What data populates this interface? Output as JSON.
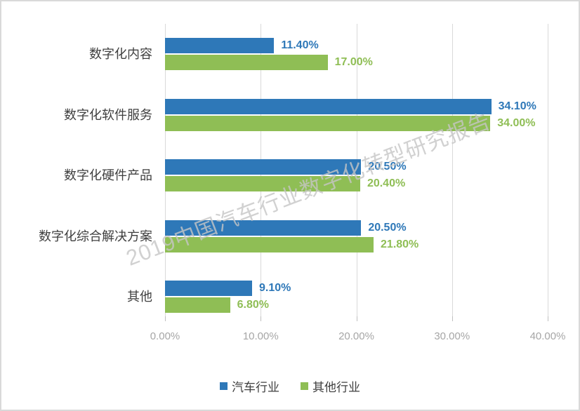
{
  "watermark": {
    "text": "2019中国汽车行业数字化转型研究报告"
  },
  "colors": {
    "auto_industry_bar": "#2e78b8",
    "other_industry_bar": "#8fbe55",
    "gridline": "#d9d9d9",
    "axis_label": "#a6a6a6",
    "category_label": "#3f3f3f",
    "panel_border": "#d9d9d9",
    "watermark": "#c6c6c6"
  },
  "chart_data": {
    "type": "bar",
    "orientation": "horizontal",
    "title": "",
    "xlabel": "",
    "ylabel": "",
    "grid": true,
    "legend_position": "bottom",
    "xlim": [
      0,
      40
    ],
    "categories": [
      "数字化内容",
      "数字化软件服务",
      "数字化硬件产品",
      "数字化综合解决方案",
      "其他"
    ],
    "series": [
      {
        "name": "汽车行业",
        "color": "#2e78b8",
        "values": [
          11.4,
          34.1,
          20.5,
          20.5,
          9.1
        ],
        "labels": [
          "11.40%",
          "34.10%",
          "20.50%",
          "20.50%",
          "9.10%"
        ]
      },
      {
        "name": "其他行业",
        "color": "#8fbe55",
        "values": [
          17.0,
          34.0,
          20.4,
          21.8,
          6.8
        ],
        "labels": [
          "17.00%",
          "34.00%",
          "20.40%",
          "21.80%",
          "6.80%"
        ]
      }
    ],
    "x_ticks": [
      {
        "value": 0,
        "label": "0.00%"
      },
      {
        "value": 10,
        "label": "10.00%"
      },
      {
        "value": 20,
        "label": "20.00%"
      },
      {
        "value": 30,
        "label": "30.00%"
      },
      {
        "value": 40,
        "label": "40.00%"
      }
    ]
  }
}
